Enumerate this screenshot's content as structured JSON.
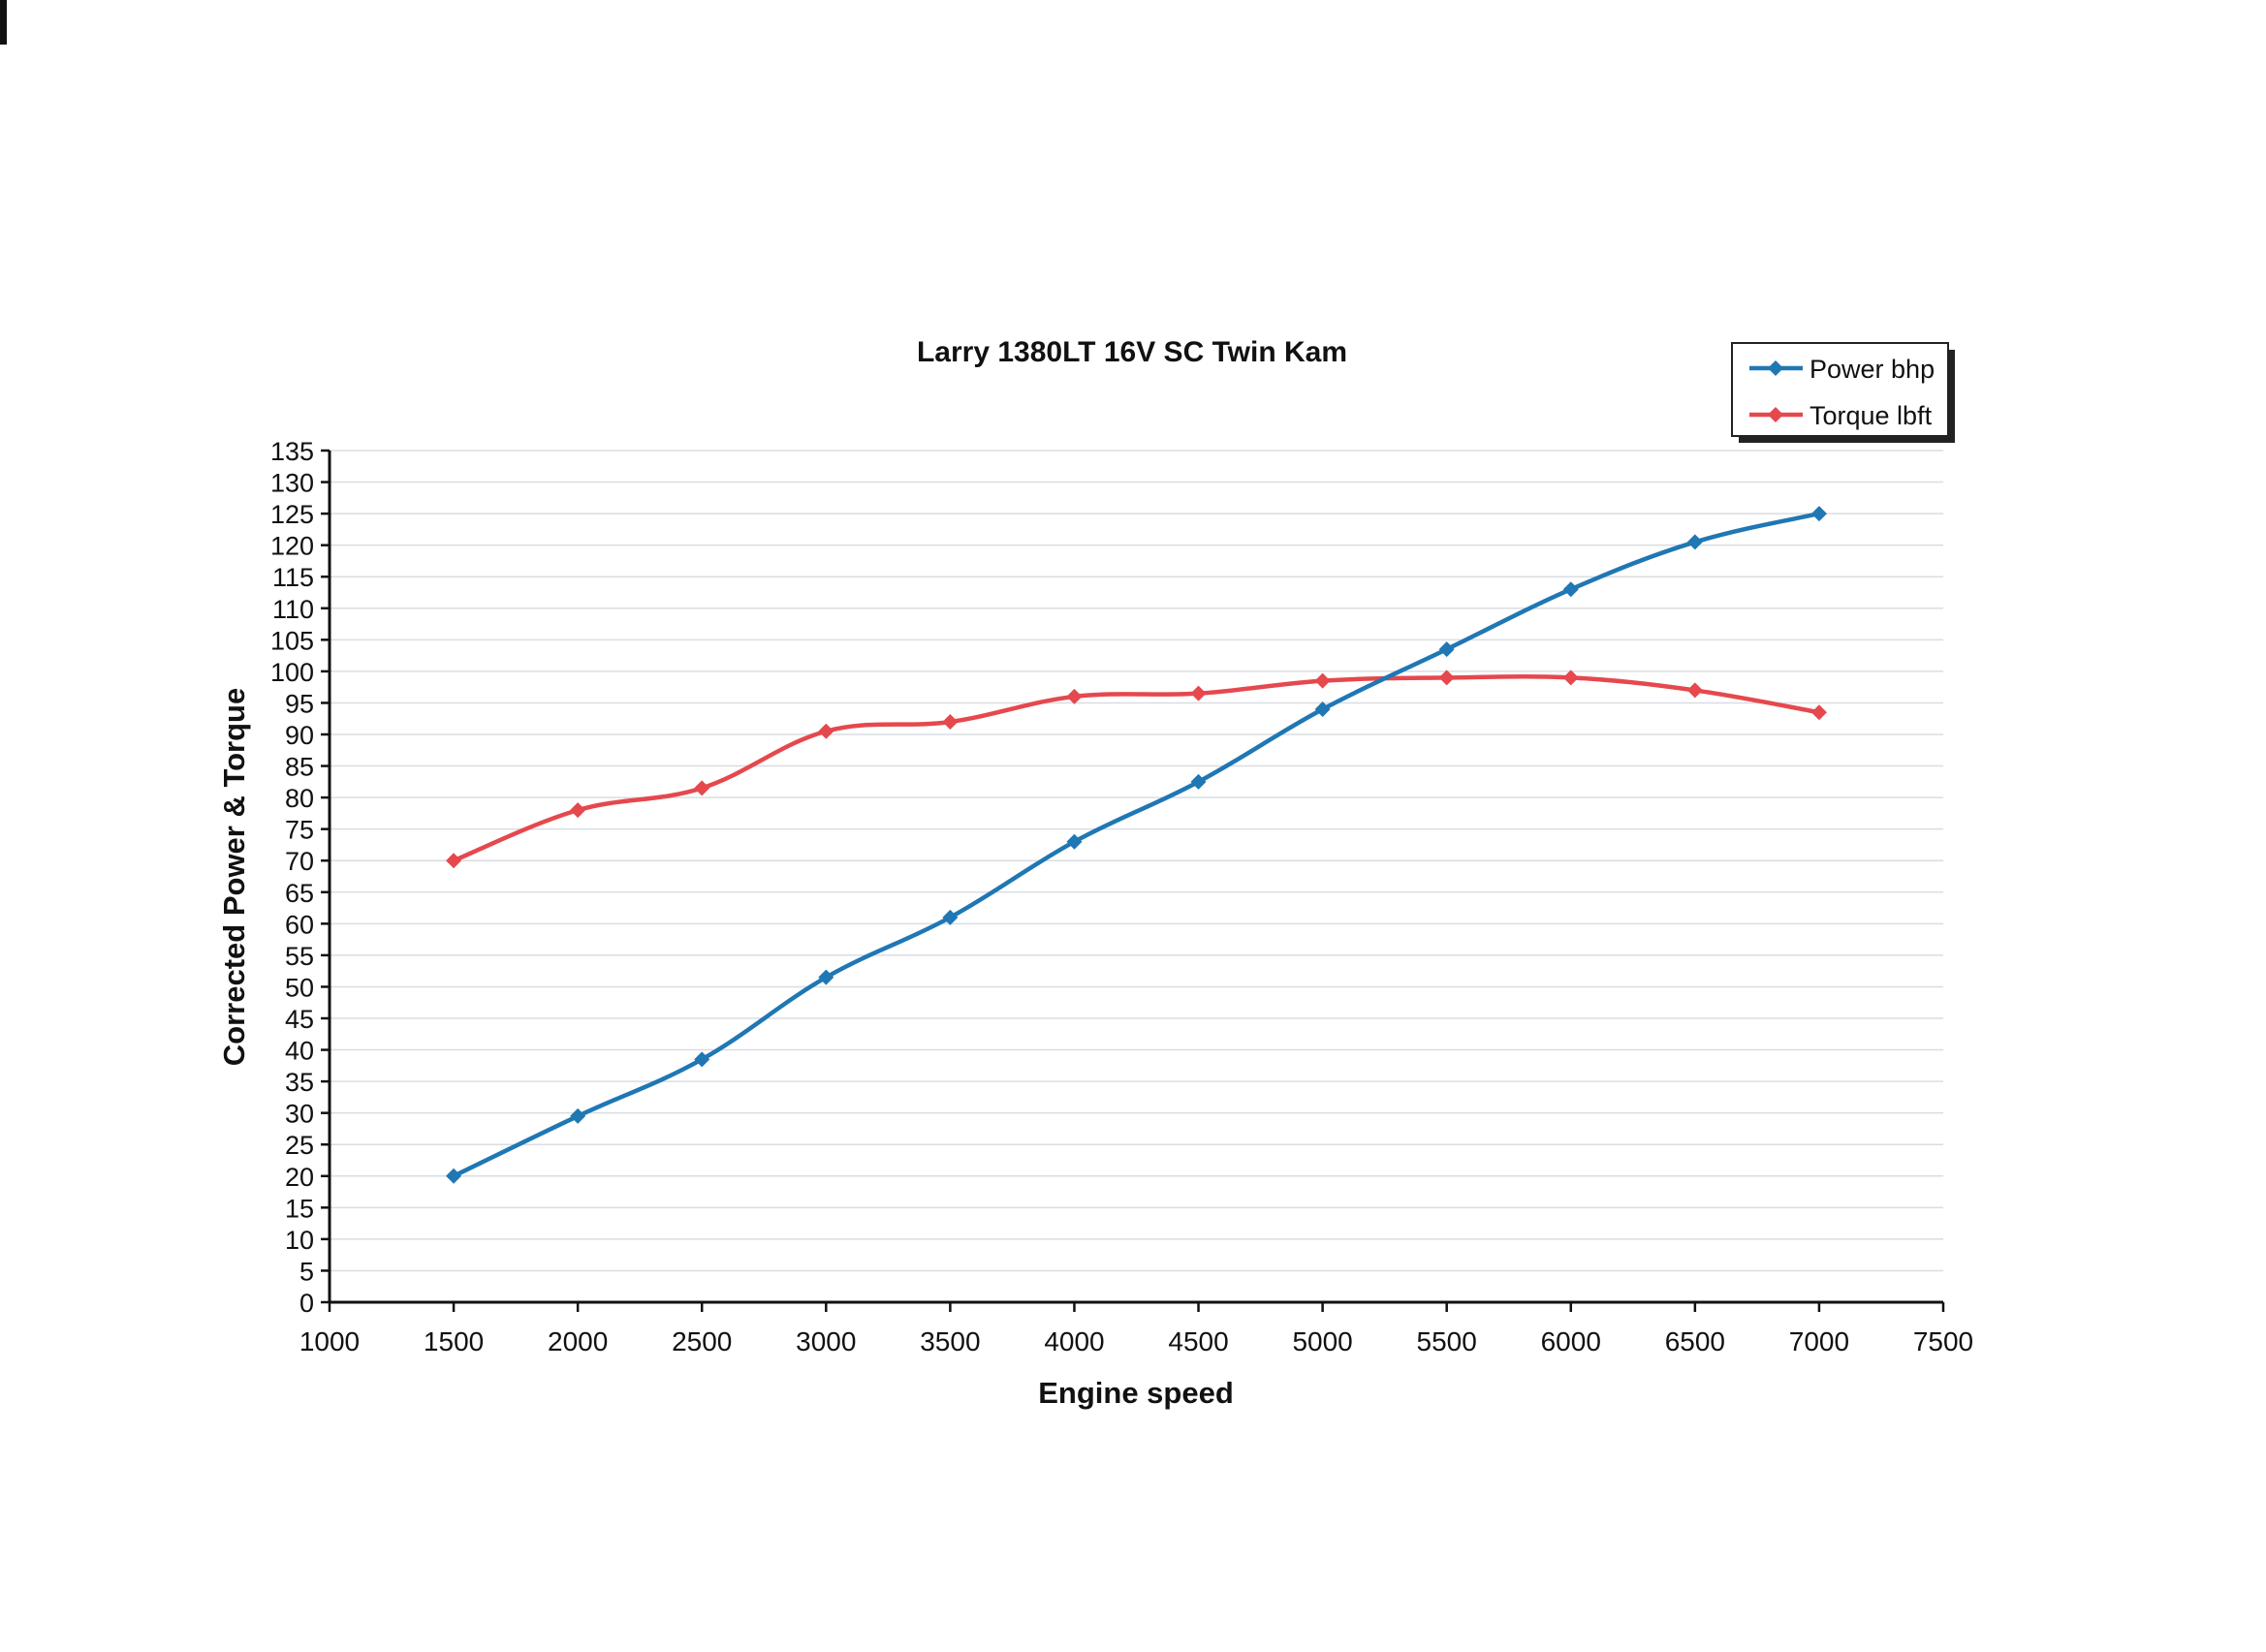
{
  "chart_data": {
    "type": "line",
    "title": "Larry 1380LT 16V SC Twin Kam",
    "xlabel": "Engine speed",
    "ylabel": "Corrected Power & Torque",
    "xlim": [
      1000,
      7500
    ],
    "ylim": [
      0,
      135
    ],
    "x_ticks": [
      1000,
      1500,
      2000,
      2500,
      3000,
      3500,
      4000,
      4500,
      5000,
      5500,
      6000,
      6500,
      7000,
      7500
    ],
    "y_ticks": [
      0,
      5,
      10,
      15,
      20,
      25,
      30,
      35,
      40,
      45,
      50,
      55,
      60,
      65,
      70,
      75,
      80,
      85,
      90,
      95,
      100,
      105,
      110,
      115,
      120,
      125,
      130,
      135
    ],
    "grid": "horizontal",
    "legend_position": "top-right",
    "x": [
      1500,
      2000,
      2500,
      3000,
      3500,
      4000,
      4500,
      5000,
      5500,
      6000,
      6500,
      7000
    ],
    "series": [
      {
        "name": "Power bhp",
        "color": "#1f77b4",
        "marker": "diamond",
        "values": [
          20,
          29.5,
          38.5,
          51.5,
          61,
          73,
          82.5,
          94,
          103.5,
          113,
          120.5,
          125
        ]
      },
      {
        "name": "Torque lbft",
        "color": "#e5484d",
        "marker": "diamond",
        "values": [
          70,
          78,
          81.5,
          90.5,
          92,
          96,
          96.5,
          98.5,
          99,
          99,
          97,
          93.5
        ]
      }
    ]
  }
}
